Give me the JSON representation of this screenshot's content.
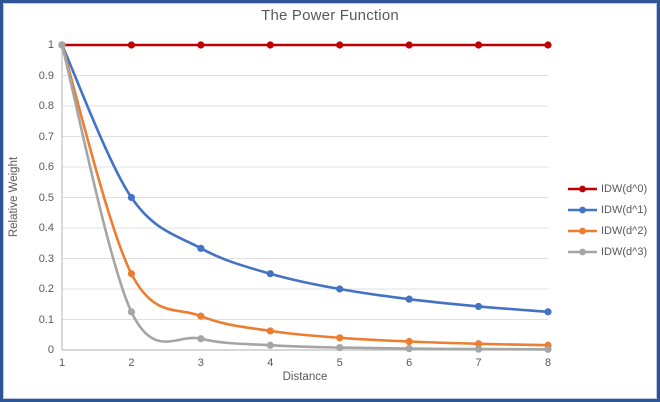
{
  "window": {
    "border_color": "#2e5496",
    "background_color": "#ffffff"
  },
  "chart_data": {
    "type": "line",
    "title": "The Power Function",
    "xlabel": "Distance",
    "ylabel": "Relative Weight",
    "x": [
      1,
      2,
      3,
      4,
      5,
      6,
      7,
      8
    ],
    "xlim": [
      1,
      8
    ],
    "ylim": [
      0,
      1
    ],
    "xtick_labels": [
      "1",
      "2",
      "3",
      "4",
      "5",
      "6",
      "7",
      "8"
    ],
    "yticks": [
      0,
      0.1,
      0.2,
      0.3,
      0.4,
      0.5,
      0.6,
      0.7,
      0.8,
      0.9,
      1
    ],
    "ytick_labels": [
      "0",
      "0.1",
      "0.2",
      "0.3",
      "0.4",
      "0.5",
      "0.6",
      "0.7",
      "0.8",
      "0.9",
      "1"
    ],
    "grid": "horizontal",
    "gridline_color": "#e0e0e0",
    "axis_line_color": "#bfbfbf",
    "text_color": "#595959",
    "smooth_lines": true,
    "markers": true,
    "legend_position": "right",
    "series": [
      {
        "name": "IDW(d^0)",
        "color": "#c00000",
        "values": [
          1,
          1,
          1,
          1,
          1,
          1,
          1,
          1
        ]
      },
      {
        "name": "IDW(d^1)",
        "color": "#4472c4",
        "values": [
          1,
          0.5,
          0.3333,
          0.25,
          0.2,
          0.1667,
          0.1429,
          0.125
        ]
      },
      {
        "name": "IDW(d^2)",
        "color": "#ed7d31",
        "values": [
          1,
          0.25,
          0.1111,
          0.0625,
          0.04,
          0.0278,
          0.0204,
          0.0156
        ]
      },
      {
        "name": "IDW(d^3)",
        "color": "#a5a5a5",
        "values": [
          1,
          0.125,
          0.037,
          0.0156,
          0.008,
          0.0046,
          0.0029,
          0.002
        ]
      }
    ]
  }
}
